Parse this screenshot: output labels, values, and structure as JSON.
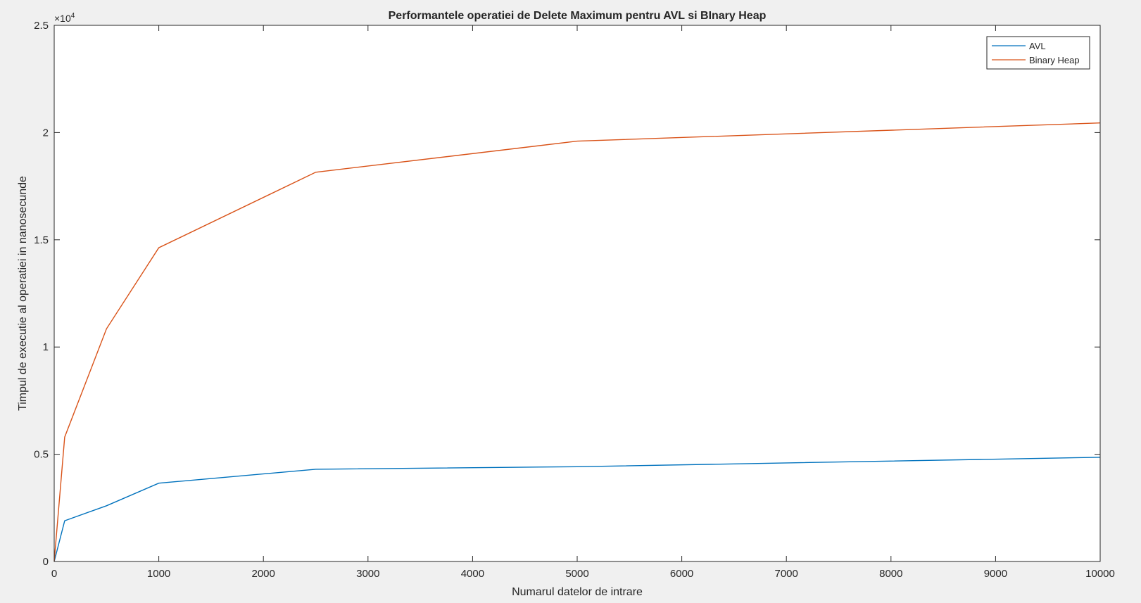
{
  "figure": {
    "background_color": "#f0f0f0",
    "axes_color": "#ffffff"
  },
  "chart_data": {
    "type": "line",
    "title": "Performantele operatiei de Delete Maximum pentru AVL si BInary Heap",
    "xlabel": "Numarul datelor de intrare",
    "ylabel": "Timpul de executie al operatiei in nanosecunde",
    "xlim": [
      0,
      10000
    ],
    "ylim": [
      0,
      25000
    ],
    "xticks": [
      0,
      1000,
      2000,
      3000,
      4000,
      5000,
      6000,
      7000,
      8000,
      9000,
      10000
    ],
    "xtick_labels": [
      "0",
      "1000",
      "2000",
      "3000",
      "4000",
      "5000",
      "6000",
      "7000",
      "8000",
      "9000",
      "10000"
    ],
    "yticks": [
      0,
      5000,
      10000,
      15000,
      20000,
      25000
    ],
    "ytick_labels": [
      "0",
      "0.5",
      "1",
      "1.5",
      "2",
      "2.5"
    ],
    "y_exponent": {
      "base": "×10",
      "power": "4"
    },
    "grid": false,
    "legend_position": "top-right",
    "x": [
      0,
      100,
      500,
      1000,
      2500,
      5000,
      10000
    ],
    "series": [
      {
        "name": "AVL",
        "color": "#0072bd",
        "values": [
          0,
          1900,
          2600,
          3650,
          4300,
          4420,
          4860
        ]
      },
      {
        "name": "Binary Heap",
        "color": "#d95319",
        "values": [
          0,
          5800,
          10850,
          14630,
          18150,
          19600,
          20450
        ]
      }
    ]
  }
}
